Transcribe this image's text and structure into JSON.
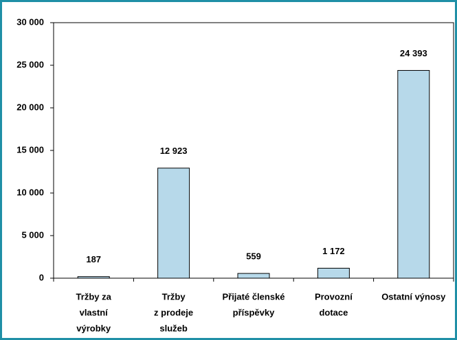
{
  "chart_data": {
    "type": "bar",
    "categories": [
      [
        "Tržby za",
        "vlastní",
        "výrobky"
      ],
      [
        "Tržby",
        "z prodeje",
        "služeb"
      ],
      [
        "Přijaté členské",
        "příspěvky"
      ],
      [
        "Provozní",
        "dotace"
      ],
      [
        "Ostatní výnosy"
      ]
    ],
    "values": [
      187,
      12923,
      559,
      1172,
      24393
    ],
    "value_labels": [
      "187",
      "12 923",
      "559",
      "1 172",
      "24 393"
    ],
    "color": "#b7d9ea",
    "ylim": [
      0,
      30000
    ],
    "yticks": [
      0,
      {
        "value": 5000,
        "label": "5 000"
      },
      {
        "value": 10000,
        "label": "10 000"
      },
      {
        "value": 15000,
        "label": "15 000"
      },
      {
        "value": 20000,
        "label": "20 000"
      },
      {
        "value": 25000,
        "label": "25 000"
      },
      {
        "value": 30000,
        "label": "30 000"
      }
    ],
    "grid": false
  }
}
